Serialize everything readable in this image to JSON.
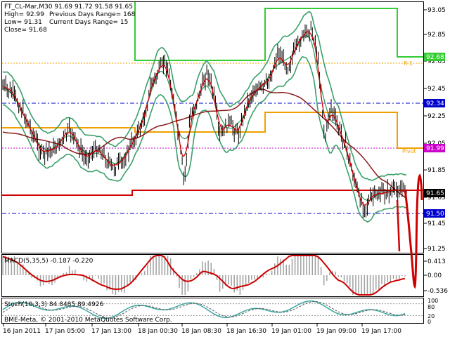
{
  "header": {
    "symbol_line": "FT_CL-Mar,M30  91.69 91.72 91.58 91.65",
    "high_label": "High= 92.99",
    "low_label": "Low= 91.31",
    "close_label": "Close= 91.68",
    "prev_range_label": "Previous Days Range= 168",
    "curr_range_label": "Current Days Range= 15"
  },
  "colors": {
    "candle": "#000000",
    "bands": "#3aa06a",
    "resistance": "#33cc33",
    "pivot": "#f0a000",
    "support": "#d00000",
    "ma_slow": "#8b1a1a",
    "blue_dash": "#0000cc",
    "magenta_dot": "#cc00cc",
    "macd_signal": "#cc0000",
    "histogram": "#a0a0a0",
    "stoch_main": "#3aa6a0"
  },
  "levels": {
    "r1_label": "R 1",
    "pivot_label": "Pivot"
  },
  "price_axis": {
    "ticks": [
      "93.05",
      "92.85",
      "92.65",
      "92.45",
      "92.25",
      "92.05",
      "91.85",
      "91.65",
      "91.45",
      "91.25"
    ],
    "badges": [
      {
        "text": "92.68",
        "color": "#33cc33"
      },
      {
        "text": "92.34",
        "color": "#0000cc"
      },
      {
        "text": "91.99",
        "color": "#cc00cc"
      },
      {
        "text": "91.65",
        "color": "#000000"
      },
      {
        "text": "91.50",
        "color": "#0000cc"
      }
    ]
  },
  "macd": {
    "label": "MACD(5,35,5) -0.187 -0.220",
    "ticks": [
      "0.413",
      "0.00",
      "-0.536"
    ]
  },
  "stoch": {
    "label": "Stoch(10,3,3) 84.8485 89.4926",
    "ticks": [
      "100",
      "80",
      "20",
      "0"
    ]
  },
  "time_axis": [
    "16 Jan 2011",
    "17 Jan 05:00",
    "17 Jan 13:00",
    "18 Jan 00:30",
    "18 Jan 08:30",
    "18 Jan 16:30",
    "19 Jan 01:00",
    "19 Jan 09:00",
    "19 Jan 17:00"
  ],
  "watermark": "BME-Meta, © 2001-2010 MetaQuotes Software Corp."
}
